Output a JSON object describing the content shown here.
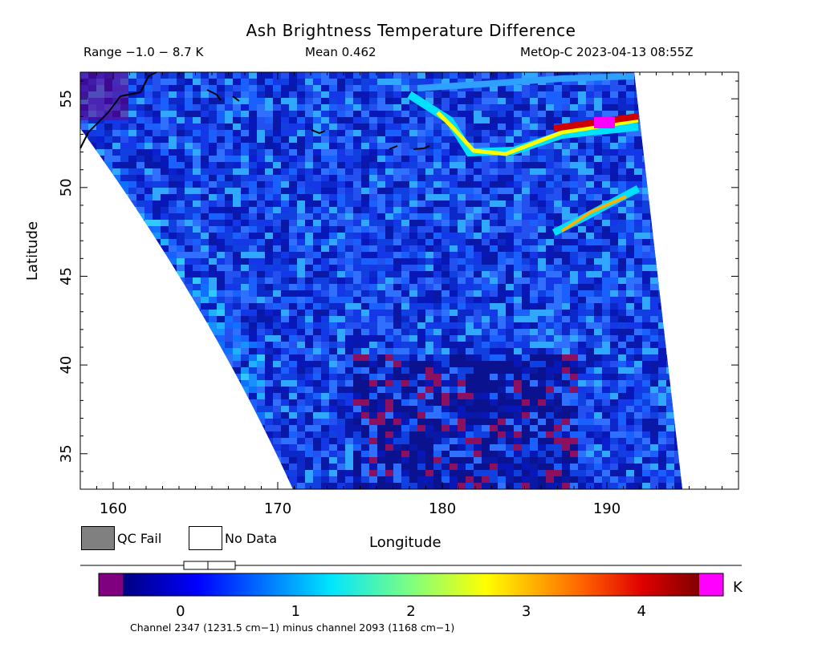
{
  "header": {
    "title": "Ash Brightness Temperature Difference",
    "range": "Range −1.0 − 8.7 K",
    "mean": "Mean 0.462",
    "satellite": "MetOp-C 2023-04-13 08:55Z"
  },
  "axes": {
    "xlabel": "Longitude",
    "ylabel": "Latitude",
    "x_ticks": [
      "160",
      "170",
      "180",
      "190"
    ],
    "y_ticks": [
      "55",
      "50",
      "45",
      "40",
      "35"
    ],
    "xlim": [
      158,
      198
    ],
    "ylim": [
      33,
      56.5
    ]
  },
  "legend": {
    "qc_fail": "QC Fail",
    "no_data": "No Data",
    "qc_fail_color": "#808080",
    "no_data_color": "#ffffff"
  },
  "colorbar": {
    "unit": "K",
    "ticks": [
      "0",
      "1",
      "2",
      "3",
      "4"
    ],
    "range": [
      -0.5,
      4.5
    ],
    "under_color": "#800080",
    "over_color": "#ff00ff",
    "footer": "Channel 2347 (1231.5 cm−1) minus channel 2093 (1168 cm−1)"
  },
  "colors": {
    "background": "#ffffff",
    "coastline": "#000000",
    "field_low": "#0000c8",
    "field_high": "#8b0000"
  }
}
